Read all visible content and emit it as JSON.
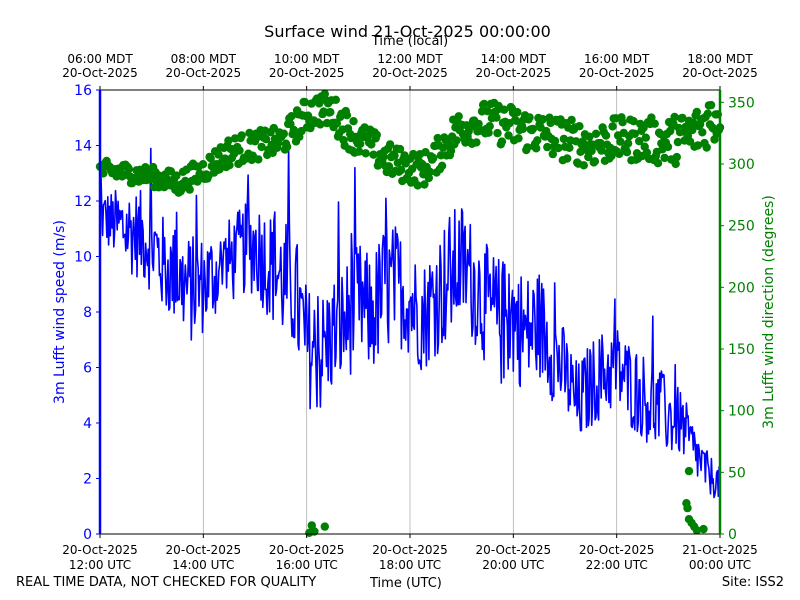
{
  "title": "Surface wind 21-Oct-2025 00:00:00",
  "top_axis_label": "Time (local)",
  "footer": {
    "left": "REAL TIME DATA, NOT CHECKED FOR QUALITY",
    "center": "Time (UTC)",
    "right": "Site: ISS2"
  },
  "colors": {
    "speed": "#0000ff",
    "direction": "#008000",
    "grid": "#b0b0b0"
  },
  "chart_data": {
    "type": "line",
    "title": "Surface wind 21-Oct-2025 00:00:00",
    "xlabel": "Time (UTC)",
    "x2label": "Time (local)",
    "xlim_utc_hours": [
      12,
      24
    ],
    "x_ticks_utc": [
      "20-Oct-2025 12:00 UTC",
      "20-Oct-2025 14:00 UTC",
      "20-Oct-2025 16:00 UTC",
      "20-Oct-2025 18:00 UTC",
      "20-Oct-2025 20:00 UTC",
      "20-Oct-2025 22:00 UTC",
      "21-Oct-2025 00:00 UTC"
    ],
    "x_ticks_local": [
      "06:00 MDT 20-Oct-2025",
      "08:00 MDT 20-Oct-2025",
      "10:00 MDT 20-Oct-2025",
      "12:00 MDT 20-Oct-2025",
      "14:00 MDT 20-Oct-2025",
      "16:00 MDT 20-Oct-2025",
      "18:00 MDT 20-Oct-2025"
    ],
    "y_left": {
      "label": "3m Lufft wind speed (m/s)",
      "lim": [
        0,
        16
      ],
      "ticks": [
        0,
        2,
        4,
        6,
        8,
        10,
        12,
        14,
        16
      ]
    },
    "y_right": {
      "label": "3m Lufft wind direction (degrees)",
      "lim": [
        0,
        360
      ],
      "ticks": [
        0,
        50,
        100,
        150,
        200,
        250,
        300,
        350
      ]
    },
    "grid": "vertical",
    "series": [
      {
        "name": "3m Lufft wind speed (m/s)",
        "style": "line",
        "color": "#0000ff",
        "x_utc_hours": [
          12.0,
          12.25,
          12.5,
          12.75,
          13.0,
          13.25,
          13.5,
          13.75,
          14.0,
          14.25,
          14.5,
          14.75,
          15.0,
          15.25,
          15.5,
          15.75,
          16.0,
          16.25,
          16.5,
          16.75,
          17.0,
          17.25,
          17.5,
          17.75,
          18.0,
          18.25,
          18.5,
          18.75,
          19.0,
          19.25,
          19.5,
          19.75,
          20.0,
          20.25,
          20.5,
          20.75,
          21.0,
          21.25,
          21.5,
          21.75,
          22.0,
          22.25,
          22.5,
          22.75,
          23.0,
          23.25,
          23.5,
          23.75,
          24.0
        ],
        "values": [
          11.5,
          11.2,
          11.0,
          10.8,
          10.5,
          9.6,
          9.2,
          8.8,
          9.0,
          9.4,
          9.8,
          10.2,
          10.4,
          9.8,
          9.2,
          8.8,
          6.8,
          6.4,
          7.2,
          7.6,
          8.4,
          7.8,
          8.8,
          9.0,
          8.4,
          7.8,
          8.6,
          9.2,
          9.8,
          9.0,
          8.2,
          7.6,
          7.8,
          7.2,
          7.6,
          6.6,
          5.8,
          4.6,
          5.4,
          5.8,
          6.0,
          5.4,
          5.0,
          4.6,
          4.2,
          4.0,
          3.0,
          2.2,
          1.8
        ],
        "wiggle": [
          1.0,
          1.2,
          1.6,
          1.6,
          1.8,
          1.8,
          1.6,
          2.0,
          1.8,
          1.6,
          1.6,
          1.6,
          1.8,
          2.0,
          2.2,
          2.4,
          2.2,
          2.2,
          2.2,
          2.2,
          2.2,
          2.2,
          2.4,
          2.2,
          2.0,
          2.0,
          2.2,
          2.4,
          2.2,
          2.2,
          2.2,
          2.4,
          2.2,
          2.2,
          2.0,
          1.8,
          1.6,
          1.6,
          1.6,
          1.6,
          1.6,
          1.6,
          1.6,
          1.6,
          1.4,
          1.2,
          1.0,
          0.8,
          0.6
        ]
      },
      {
        "name": "3m Lufft wind direction (degrees)",
        "style": "scatter",
        "color": "#008000",
        "x_utc_hours": [
          12.0,
          12.5,
          13.0,
          13.5,
          14.0,
          14.5,
          15.0,
          15.5,
          16.0,
          16.25,
          16.5,
          16.75,
          17.0,
          17.25,
          17.5,
          17.75,
          18.0,
          18.25,
          18.5,
          18.75,
          19.0,
          19.5,
          20.0,
          20.5,
          21.0,
          21.5,
          22.0,
          22.5,
          23.0,
          23.5,
          23.75,
          24.0
        ],
        "values": [
          295,
          293,
          290,
          284,
          295,
          310,
          315,
          318,
          340,
          345,
          342,
          330,
          320,
          315,
          305,
          300,
          298,
          295,
          305,
          320,
          330,
          335,
          330,
          325,
          320,
          315,
          320,
          320,
          318,
          325,
          335,
          340
        ],
        "spread": [
          8,
          8,
          8,
          10,
          10,
          12,
          12,
          12,
          14,
          14,
          14,
          16,
          14,
          14,
          14,
          14,
          14,
          14,
          14,
          16,
          16,
          16,
          18,
          18,
          18,
          18,
          18,
          18,
          20,
          20,
          22,
          22
        ],
        "outliers": [
          {
            "x": 16.05,
            "y": 1
          },
          {
            "x": 16.15,
            "y": 2
          },
          {
            "x": 16.1,
            "y": 7
          },
          {
            "x": 16.35,
            "y": 6
          },
          {
            "x": 23.4,
            "y": 51
          },
          {
            "x": 23.35,
            "y": 25
          },
          {
            "x": 23.37,
            "y": 21
          },
          {
            "x": 23.4,
            "y": 12
          },
          {
            "x": 23.45,
            "y": 9
          },
          {
            "x": 23.5,
            "y": 6
          },
          {
            "x": 23.55,
            "y": 3
          },
          {
            "x": 23.68,
            "y": 4
          }
        ]
      }
    ]
  }
}
